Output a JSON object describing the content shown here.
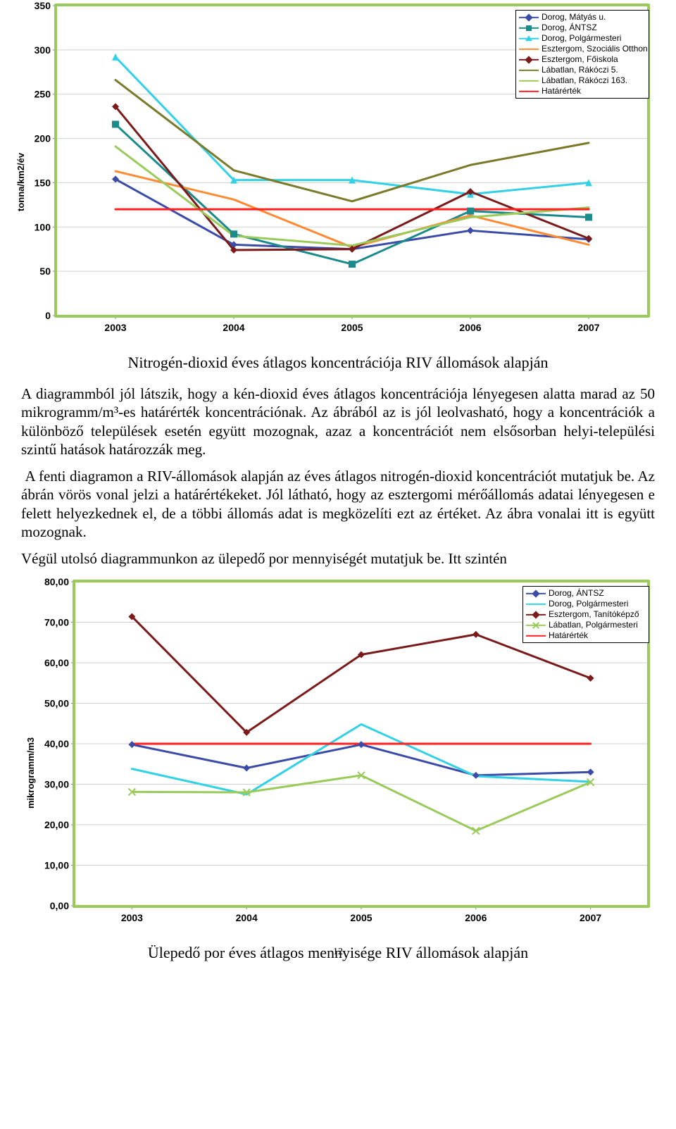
{
  "chart1": {
    "type": "line",
    "border_color": "#9acb5a",
    "background_color": "#ffffff",
    "grid_color": "#d0d0d0",
    "axis_color": "#808080",
    "y_axis_label": "tonna/km2/év",
    "y_axis_font_size": 13,
    "x_labels": [
      "2003",
      "2004",
      "2005",
      "2006",
      "2007"
    ],
    "x_label_font_size": 14,
    "y_min": 0,
    "y_max": 350,
    "y_tick_step": 50,
    "y_label_font_size": 14,
    "line_width": 3,
    "marker_size": 8,
    "legend_border_color": "#000000",
    "legend_font_size": 12,
    "series": [
      {
        "name": "Dorog, Mátyás u.",
        "color": "#3b4ba7",
        "marker": "diamond",
        "values": [
          154,
          80,
          75,
          96,
          86
        ]
      },
      {
        "name": "Dorog, ÁNTSZ",
        "color": "#1a8a8a",
        "marker": "square",
        "values": [
          216,
          92,
          58,
          118,
          111
        ]
      },
      {
        "name": "Dorog, Polgármesteri",
        "color": "#33d1e6",
        "marker": "triangle",
        "values": [
          292,
          153,
          153,
          137,
          150
        ]
      },
      {
        "name": "Esztergom, Szociális Otthon",
        "color": "#ff8a33",
        "marker": "none",
        "values": [
          163,
          131,
          77,
          113,
          80
        ]
      },
      {
        "name": "Esztergom, Főiskola",
        "color": "#7a1a1a",
        "marker": "diamond",
        "values": [
          236,
          74,
          75,
          140,
          87
        ]
      },
      {
        "name": "Lábatlan, Rákóczi 5.",
        "color": "#7a7a2a",
        "marker": "none",
        "values": [
          266,
          164,
          129,
          170,
          195
        ]
      },
      {
        "name": "Lábatlan, Rákóczi 163.",
        "color": "#9acb5a",
        "marker": "none",
        "values": [
          191,
          90,
          79,
          111,
          122
        ]
      },
      {
        "name": "Határérték",
        "color": "#ff2020",
        "marker": "none",
        "values": [
          120,
          120,
          120,
          120,
          120
        ],
        "is_limit": true
      }
    ]
  },
  "caption1": "Nitrogén-dioxid éves átlagos koncentrációja RIV állomások alapján",
  "para1": "A diagrammból jól látszik, hogy a kén-dioxid éves átlagos koncentrációja lényegesen alatta marad az 50 mikrogramm/m³-es határérték koncentrációnak. Az ábrából az is jól leolvasható, hogy a koncentrációk a különböző települések esetén együtt mozognak, azaz a koncentrációt nem elsősorban helyi-települési szintű hatások határozzák meg.",
  "para2": " A fenti diagramon a RIV-állomások alapján az éves átlagos nitrogén-dioxid koncentrációt mutatjuk be. Az ábrán vörös vonal jelzi a határértékeket. Jól látható, hogy az esztergomi mérőállomás adatai lényegesen e felett helyezkednek el, de a többi állomás adat is megközelíti ezt az értéket. Az ábra vonalai itt is együtt mozognak.",
  "para3": "Végül utolsó diagrammunkon az ülepedő por mennyiségét mutatjuk be. Itt szintén",
  "chart2": {
    "type": "line",
    "border_color": "#9acb5a",
    "background_color": "#ffffff",
    "grid_color": "#d0d0d0",
    "axis_color": "#808080",
    "y_axis_label": "mikrogramm/m3",
    "y_axis_font_size": 13,
    "x_labels": [
      "2003",
      "2004",
      "2005",
      "2006",
      "2007"
    ],
    "x_label_font_size": 14,
    "y_min": 0,
    "y_max": 80,
    "y_tick_step": 10,
    "y_label_decimals": 2,
    "y_label_font_size": 14,
    "line_width": 3,
    "marker_size": 8,
    "legend_border_color": "#000000",
    "legend_font_size": 12,
    "series": [
      {
        "name": "Dorog, ÁNTSZ",
        "color": "#3b4ba7",
        "marker": "diamond",
        "values": [
          39.8,
          34.0,
          39.8,
          32.2,
          33.0
        ]
      },
      {
        "name": "Dorog, Polgármesteri",
        "color": "#33d1e6",
        "marker": "none",
        "values": [
          33.8,
          27.5,
          44.8,
          32.0,
          30.6
        ]
      },
      {
        "name": "Esztergom, Tanítóképző",
        "color": "#7a1a1a",
        "marker": "diamond",
        "values": [
          71.4,
          42.8,
          62.0,
          67.0,
          56.2
        ]
      },
      {
        "name": "Lábatlan, Polgármesteri",
        "color": "#9acb5a",
        "marker": "x",
        "values": [
          28.1,
          28.0,
          32.2,
          18.5,
          30.5
        ]
      },
      {
        "name": "Határérték",
        "color": "#ff2020",
        "marker": "none",
        "values": [
          40.0,
          40.0,
          40.0,
          40.0,
          40.0
        ],
        "is_limit": true
      }
    ]
  },
  "caption2": "Ülepedő por éves átlagos mennyisége RIV állomások alapján",
  "page_number": "12"
}
